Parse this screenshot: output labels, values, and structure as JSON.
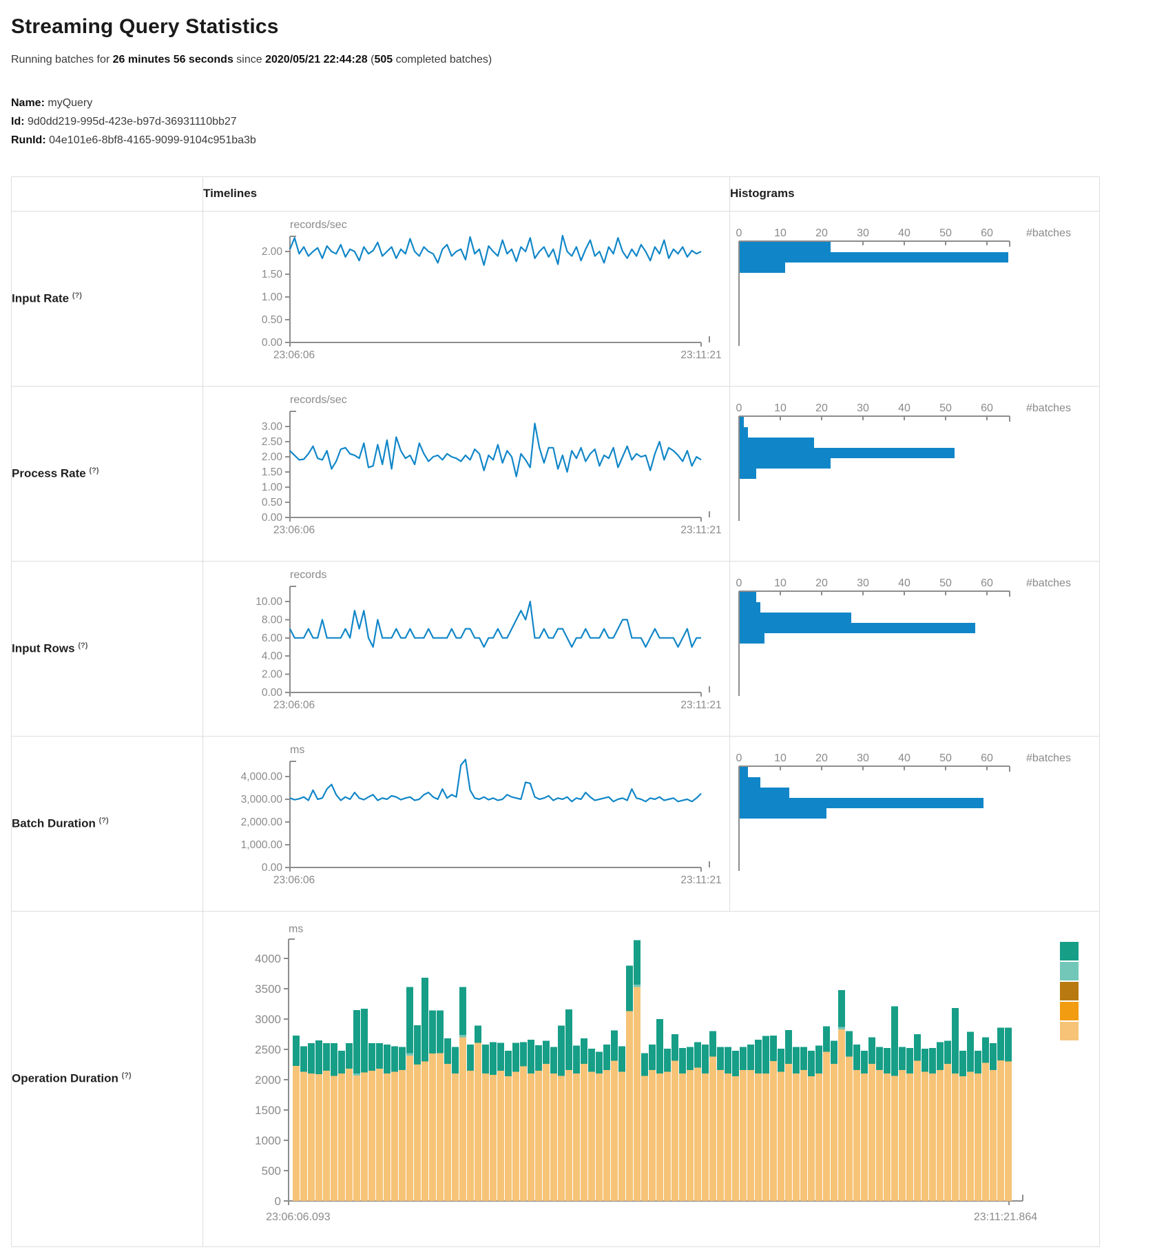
{
  "page": {
    "title": "Streaming Query Statistics",
    "running_line": {
      "pre": "Running batches for ",
      "duration": "26 minutes 56 seconds",
      "mid": " since ",
      "timestamp": "2020/05/21 22:44:28",
      "open": " (",
      "count": "505",
      "post": " completed batches)"
    },
    "info": {
      "name_label": "Name:",
      "name": "myQuery",
      "id_label": "Id:",
      "id": "9d0dd219-995d-423e-b97d-36931110bb27",
      "runid_label": "RunId:",
      "runid": "04e101e6-8bf8-4165-9099-9104c951ba3b"
    }
  },
  "table": {
    "timelines_header": "Timelines",
    "histograms_header": "Histograms",
    "help_marker": "(?)"
  },
  "colors": {
    "blue": "#1086C8",
    "axis": "#8d8d8d",
    "tick_text": "#8a8a8a",
    "teal": "#179E87",
    "light_teal": "#73C7B8",
    "dark_orange": "#B87A10",
    "orange": "#F29C11",
    "tan": "#F6C377"
  },
  "chart_data": [
    {
      "label": "Input Rate",
      "type": "line",
      "unit": "records/sec",
      "x_start": "23:06:06",
      "x_end": "23:11:21",
      "y_tick_labels": [
        "0.00",
        "0.50",
        "1.00",
        "1.50",
        "2.00"
      ],
      "y_tick_values": [
        0,
        0.5,
        1,
        1.5,
        2
      ],
      "values": [
        2.05,
        2.3,
        1.95,
        2.1,
        1.9,
        2.0,
        2.08,
        1.85,
        2.12,
        2.0,
        1.95,
        2.15,
        1.88,
        2.05,
        2.0,
        1.8,
        2.1,
        1.95,
        2.02,
        2.2,
        1.9,
        2.0,
        2.1,
        1.85,
        2.05,
        1.95,
        2.28,
        2.0,
        1.9,
        2.1,
        2.0,
        1.95,
        1.75,
        2.05,
        2.15,
        1.9,
        2.0,
        2.05,
        1.82,
        2.32,
        1.95,
        2.05,
        1.7,
        2.12,
        2.0,
        1.9,
        2.25,
        1.95,
        2.05,
        1.78,
        2.1,
        2.0,
        2.3,
        1.85,
        2.0,
        2.1,
        1.88,
        2.05,
        1.72,
        2.35,
        2.0,
        1.9,
        2.1,
        1.8,
        2.05,
        2.25,
        1.9,
        2.0,
        1.75,
        2.1,
        1.95,
        2.3,
        2.0,
        1.85,
        2.05,
        1.9,
        2.15,
        2.0,
        1.8,
        2.1,
        1.95,
        2.25,
        1.85,
        2.05,
        1.95,
        2.1,
        1.88,
        2.02,
        1.95,
        2.0
      ],
      "histogram": {
        "tick_labels": [
          "0",
          "10",
          "20",
          "30",
          "40",
          "50",
          "60"
        ],
        "tick_values": [
          0,
          10,
          20,
          30,
          40,
          50,
          60
        ],
        "axis_end_value": 65.5,
        "unit_label": "#batches",
        "bins": [
          22,
          65,
          11
        ]
      }
    },
    {
      "label": "Process Rate",
      "type": "line",
      "unit": "records/sec",
      "x_start": "23:06:06",
      "x_end": "23:11:21",
      "y_tick_labels": [
        "0.00",
        "0.50",
        "1.00",
        "1.50",
        "2.00",
        "2.50",
        "3.00"
      ],
      "y_tick_values": [
        0,
        0.5,
        1,
        1.5,
        2,
        2.5,
        3
      ],
      "values": [
        2.2,
        2.05,
        1.9,
        1.92,
        2.1,
        2.35,
        1.95,
        1.9,
        2.2,
        1.6,
        1.85,
        2.25,
        2.3,
        2.1,
        2.05,
        1.95,
        2.45,
        1.65,
        1.7,
        2.4,
        1.75,
        2.55,
        1.6,
        2.65,
        2.2,
        1.95,
        2.05,
        1.75,
        2.45,
        2.1,
        1.85,
        2.0,
        2.05,
        1.9,
        2.1,
        2.0,
        1.95,
        1.85,
        2.05,
        1.9,
        2.25,
        2.1,
        1.55,
        2.05,
        1.9,
        2.4,
        1.8,
        2.2,
        2.0,
        1.35,
        2.1,
        1.9,
        1.65,
        3.1,
        2.3,
        1.8,
        2.3,
        2.3,
        1.6,
        2.05,
        1.5,
        2.2,
        1.95,
        2.3,
        1.85,
        2.1,
        2.25,
        1.7,
        2.05,
        1.95,
        2.3,
        1.65,
        2.0,
        2.35,
        1.9,
        2.1,
        2.0,
        2.05,
        1.55,
        2.1,
        2.5,
        1.9,
        2.3,
        2.2,
        2.05,
        1.85,
        2.2,
        1.7,
        2.0,
        1.9
      ],
      "histogram": {
        "tick_labels": [
          "0",
          "10",
          "20",
          "30",
          "40",
          "50",
          "60"
        ],
        "tick_values": [
          0,
          10,
          20,
          30,
          40,
          50,
          60
        ],
        "axis_end_value": 65.5,
        "unit_label": "#batches",
        "bins": [
          1,
          2,
          18,
          52,
          22,
          4
        ]
      }
    },
    {
      "label": "Input Rows",
      "type": "line",
      "unit": "records",
      "x_start": "23:06:06",
      "x_end": "23:11:21",
      "y_tick_labels": [
        "0.00",
        "2.00",
        "4.00",
        "6.00",
        "8.00",
        "10.00"
      ],
      "y_tick_values": [
        0,
        2,
        4,
        6,
        8,
        10
      ],
      "values": [
        7,
        6,
        6,
        6,
        7,
        6,
        6,
        8,
        6,
        6,
        6,
        6,
        7,
        6,
        9,
        7,
        9,
        6,
        5,
        8,
        6,
        6,
        6,
        7,
        6,
        6,
        7,
        6,
        6,
        6,
        7,
        6,
        6,
        6,
        6,
        7,
        6,
        6,
        7,
        7,
        6,
        6,
        5,
        6,
        6,
        7,
        6,
        6,
        7,
        8,
        9,
        8,
        10,
        6,
        6,
        7,
        6,
        6,
        7,
        7,
        6,
        5,
        6,
        6,
        7,
        6,
        6,
        6,
        7,
        6,
        6,
        7,
        8,
        8,
        6,
        6,
        6,
        5,
        6,
        7,
        6,
        6,
        6,
        6,
        5,
        6,
        7,
        5,
        6,
        6
      ],
      "histogram": {
        "tick_labels": [
          "0",
          "10",
          "20",
          "30",
          "40",
          "50",
          "60"
        ],
        "tick_values": [
          0,
          10,
          20,
          30,
          40,
          50,
          60
        ],
        "axis_end_value": 65.5,
        "unit_label": "#batches",
        "bins": [
          4,
          5,
          27,
          57,
          6
        ]
      }
    },
    {
      "label": "Batch Duration",
      "type": "line",
      "unit": "ms",
      "x_start": "23:06:06",
      "x_end": "23:11:21",
      "y_tick_labels": [
        "0.00",
        "1,000.00",
        "2,000.00",
        "3,000.00",
        "4,000.00"
      ],
      "y_tick_values": [
        0,
        1000,
        2000,
        3000,
        4000
      ],
      "values": [
        3050,
        2980,
        3020,
        3100,
        2950,
        3400,
        3000,
        3050,
        3450,
        3650,
        3200,
        2950,
        3100,
        3000,
        3300,
        3050,
        2980,
        3100,
        3200,
        2950,
        3050,
        3000,
        3150,
        3100,
        2980,
        3050,
        3100,
        2950,
        3000,
        3200,
        3300,
        3100,
        3000,
        3450,
        3050,
        3200,
        3100,
        4500,
        4750,
        3400,
        3050,
        3000,
        3100,
        2980,
        3050,
        2950,
        3000,
        3200,
        3100,
        3050,
        3000,
        3750,
        3700,
        3100,
        3000,
        3050,
        3150,
        2950,
        3050,
        3000,
        3100,
        2900,
        3050,
        3000,
        3300,
        3100,
        2950,
        3000,
        3050,
        3100,
        2900,
        3000,
        3050,
        2950,
        3450,
        3050,
        3000,
        2900,
        3050,
        3000,
        3100,
        2950,
        3000,
        3050,
        2900,
        2950,
        3000,
        2900,
        3050,
        3250
      ],
      "histogram": {
        "tick_labels": [
          "0",
          "10",
          "20",
          "30",
          "40",
          "50",
          "60"
        ],
        "tick_values": [
          0,
          10,
          20,
          30,
          40,
          50,
          60
        ],
        "axis_end_value": 65.5,
        "unit_label": "#batches",
        "bins": [
          2,
          5,
          12,
          59,
          21
        ]
      }
    },
    {
      "label": "Operation Duration",
      "type": "stacked_bar",
      "unit": "ms",
      "x_start": "23:06:06.093",
      "x_end": "23:11:21.864",
      "y_tick_labels": [
        "0",
        "500",
        "1000",
        "1500",
        "2000",
        "2500",
        "3000",
        "3500",
        "4000"
      ],
      "y_tick_values": [
        0,
        500,
        1000,
        1500,
        2000,
        2500,
        3000,
        3500,
        4000
      ],
      "legend_colors": [
        "#179E87",
        "#73C7B8",
        "#B87A10",
        "#F29C11",
        "#F6C377"
      ],
      "series": {
        "bottom": {
          "color": "#F6C377",
          "values": [
            2230,
            2130,
            2100,
            2090,
            2150,
            2060,
            2100,
            2180,
            2070,
            2120,
            2150,
            2180,
            2100,
            2130,
            2160,
            2400,
            2250,
            2300,
            2430,
            2440,
            2260,
            2100,
            2700,
            2150,
            2610,
            2100,
            2080,
            2150,
            2060,
            2130,
            2220,
            2100,
            2150,
            2260,
            2100,
            2060,
            2160,
            2100,
            2260,
            2130,
            2100,
            2160,
            2310,
            2130,
            3130,
            3530,
            2060,
            2160,
            2100,
            2130,
            2310,
            2100,
            2160,
            2200,
            2100,
            2380,
            2160,
            2100,
            2060,
            2160,
            2160,
            2100,
            2100,
            2310,
            2130,
            2260,
            2100,
            2160,
            2060,
            2100,
            2460,
            2260,
            2830,
            2380,
            2160,
            2100,
            2260,
            2160,
            2100,
            2060,
            2160,
            2100,
            2310,
            2130,
            2100,
            2160,
            2260,
            2100,
            2060,
            2130,
            2100,
            2280,
            2160,
            2320,
            2300
          ]
        },
        "middle": {
          "color": "#73C7B8",
          "values": [
            0,
            0,
            0,
            0,
            0,
            0,
            0,
            0,
            30,
            0,
            0,
            0,
            0,
            0,
            0,
            40,
            0,
            0,
            0,
            0,
            0,
            0,
            40,
            0,
            0,
            0,
            0,
            0,
            0,
            0,
            0,
            0,
            0,
            0,
            0,
            0,
            0,
            0,
            0,
            0,
            0,
            0,
            0,
            0,
            0,
            40,
            0,
            0,
            0,
            0,
            0,
            0,
            0,
            0,
            0,
            0,
            0,
            0,
            0,
            0,
            0,
            0,
            0,
            0,
            0,
            0,
            0,
            0,
            0,
            0,
            0,
            0,
            40,
            0,
            0,
            0,
            0,
            0,
            0,
            0,
            0,
            0,
            0,
            0,
            0,
            0,
            0,
            0,
            0,
            0,
            0,
            0,
            0,
            0,
            0
          ]
        },
        "top": {
          "color": "#179E87",
          "values": [
            500,
            420,
            500,
            560,
            450,
            540,
            380,
            420,
            1050,
            1050,
            450,
            420,
            480,
            420,
            380,
            1090,
            650,
            1380,
            710,
            700,
            420,
            440,
            790,
            430,
            280,
            480,
            540,
            460,
            420,
            480,
            400,
            560,
            420,
            380,
            440,
            830,
            1000,
            460,
            420,
            380,
            360,
            420,
            500,
            420,
            750,
            730,
            380,
            420,
            900,
            380,
            440,
            420,
            380,
            420,
            480,
            420,
            380,
            440,
            420,
            380,
            420,
            560,
            620,
            420,
            380,
            560,
            440,
            380,
            420,
            460,
            420,
            380,
            610,
            420,
            420,
            380,
            440,
            380,
            420,
            1150,
            380,
            420,
            440,
            380,
            420,
            460,
            380,
            1080,
            420,
            660,
            380,
            420,
            440,
            540,
            560
          ]
        }
      }
    }
  ]
}
